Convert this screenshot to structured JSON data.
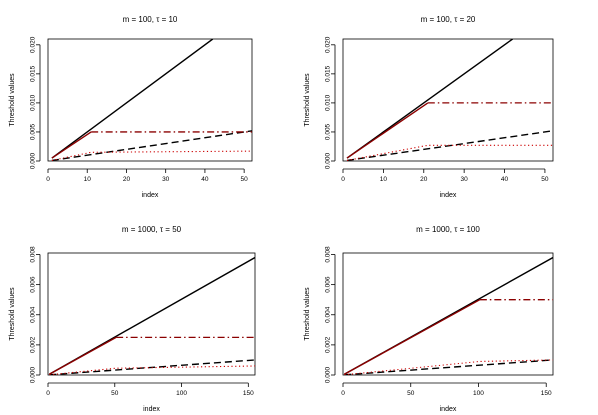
{
  "chart_data": [
    {
      "type": "line",
      "title": "m = 100,  τ = 10",
      "xlabel": "index",
      "ylabel": "Threshold values",
      "xlim": [
        0,
        52
      ],
      "ylim": [
        0,
        0.021
      ],
      "xticks": [
        0,
        10,
        20,
        30,
        40,
        50
      ],
      "xtick_labels": [
        "0",
        "10",
        "20",
        "30",
        "40",
        "50"
      ],
      "yticks": [
        0,
        0.005,
        0.01,
        0.015,
        0.02
      ],
      "ytick_labels": [
        "0.000",
        "0.005",
        "0.010",
        "0.015",
        "0.020"
      ],
      "series": [
        {
          "color": "#000000",
          "style": "solid",
          "x": [
            1,
            42
          ],
          "y": [
            0.0005,
            0.021
          ]
        },
        {
          "color": "#000000",
          "style": "dashed",
          "x": [
            1,
            52
          ],
          "y": [
            0.0001,
            0.0052
          ]
        },
        {
          "color": "#8b0000",
          "style": "solid",
          "x": [
            1,
            11
          ],
          "y": [
            0.0005,
            0.005
          ]
        },
        {
          "color": "#8b0000",
          "style": "dashdot",
          "x": [
            11,
            52
          ],
          "y": [
            0.005,
            0.005
          ]
        },
        {
          "color": "#cc0000",
          "style": "dotted",
          "x": [
            1,
            11,
            52
          ],
          "y": [
            0.0001,
            0.0015,
            0.0017
          ]
        }
      ]
    },
    {
      "type": "line",
      "title": "m = 100,  τ = 20",
      "xlabel": "index",
      "ylabel": "Threshold values",
      "xlim": [
        0,
        52
      ],
      "ylim": [
        0,
        0.021
      ],
      "xticks": [
        0,
        10,
        20,
        30,
        40,
        50
      ],
      "xtick_labels": [
        "0",
        "10",
        "20",
        "30",
        "40",
        "50"
      ],
      "yticks": [
        0,
        0.005,
        0.01,
        0.015,
        0.02
      ],
      "ytick_labels": [
        "0.000",
        "0.005",
        "0.010",
        "0.015",
        "0.020"
      ],
      "series": [
        {
          "color": "#000000",
          "style": "solid",
          "x": [
            1,
            42
          ],
          "y": [
            0.0005,
            0.021
          ]
        },
        {
          "color": "#000000",
          "style": "dashed",
          "x": [
            1,
            52
          ],
          "y": [
            0.0001,
            0.0052
          ]
        },
        {
          "color": "#8b0000",
          "style": "solid",
          "x": [
            1,
            21
          ],
          "y": [
            0.0005,
            0.01
          ]
        },
        {
          "color": "#8b0000",
          "style": "dashdot",
          "x": [
            21,
            52
          ],
          "y": [
            0.01,
            0.01
          ]
        },
        {
          "color": "#cc0000",
          "style": "dotted",
          "x": [
            1,
            21,
            52
          ],
          "y": [
            0.0001,
            0.0027,
            0.0027
          ]
        }
      ]
    },
    {
      "type": "line",
      "title": "m = 1000,  τ = 50",
      "xlabel": "index",
      "ylabel": "Threshold values",
      "xlim": [
        0,
        155
      ],
      "ylim": [
        0,
        0.0081
      ],
      "xticks": [
        0,
        50,
        100,
        150
      ],
      "xtick_labels": [
        "0",
        "50",
        "100",
        "150"
      ],
      "yticks": [
        0,
        0.002,
        0.004,
        0.006,
        0.008
      ],
      "ytick_labels": [
        "0.000",
        "0.002",
        "0.004",
        "0.006",
        "0.008"
      ],
      "series": [
        {
          "color": "#000000",
          "style": "solid",
          "x": [
            1,
            155
          ],
          "y": [
            5e-05,
            0.0078
          ]
        },
        {
          "color": "#000000",
          "style": "dashed",
          "x": [
            1,
            155
          ],
          "y": [
            1e-05,
            0.001
          ]
        },
        {
          "color": "#8b0000",
          "style": "solid",
          "x": [
            1,
            51
          ],
          "y": [
            5e-05,
            0.0025
          ]
        },
        {
          "color": "#8b0000",
          "style": "dashdot",
          "x": [
            51,
            155
          ],
          "y": [
            0.0025,
            0.0025
          ]
        },
        {
          "color": "#cc0000",
          "style": "dotted",
          "x": [
            1,
            51,
            155
          ],
          "y": [
            1e-05,
            0.00045,
            0.0006
          ]
        }
      ]
    },
    {
      "type": "line",
      "title": "m = 1000,  τ = 100",
      "xlabel": "index",
      "ylabel": "Threshold values",
      "xlim": [
        0,
        155
      ],
      "ylim": [
        0,
        0.0081
      ],
      "xticks": [
        0,
        50,
        100,
        150
      ],
      "xtick_labels": [
        "0",
        "50",
        "100",
        "150"
      ],
      "yticks": [
        0,
        0.002,
        0.004,
        0.006,
        0.008
      ],
      "ytick_labels": [
        "0.000",
        "0.002",
        "0.004",
        "0.006",
        "0.008"
      ],
      "series": [
        {
          "color": "#000000",
          "style": "solid",
          "x": [
            1,
            155
          ],
          "y": [
            5e-05,
            0.0078
          ]
        },
        {
          "color": "#000000",
          "style": "dashed",
          "x": [
            1,
            155
          ],
          "y": [
            1e-05,
            0.001
          ]
        },
        {
          "color": "#8b0000",
          "style": "solid",
          "x": [
            1,
            101
          ],
          "y": [
            5e-05,
            0.005
          ]
        },
        {
          "color": "#8b0000",
          "style": "dashdot",
          "x": [
            101,
            155
          ],
          "y": [
            0.005,
            0.005
          ]
        },
        {
          "color": "#cc0000",
          "style": "dotted",
          "x": [
            1,
            101,
            155
          ],
          "y": [
            1e-05,
            0.0009,
            0.001
          ]
        }
      ]
    }
  ]
}
